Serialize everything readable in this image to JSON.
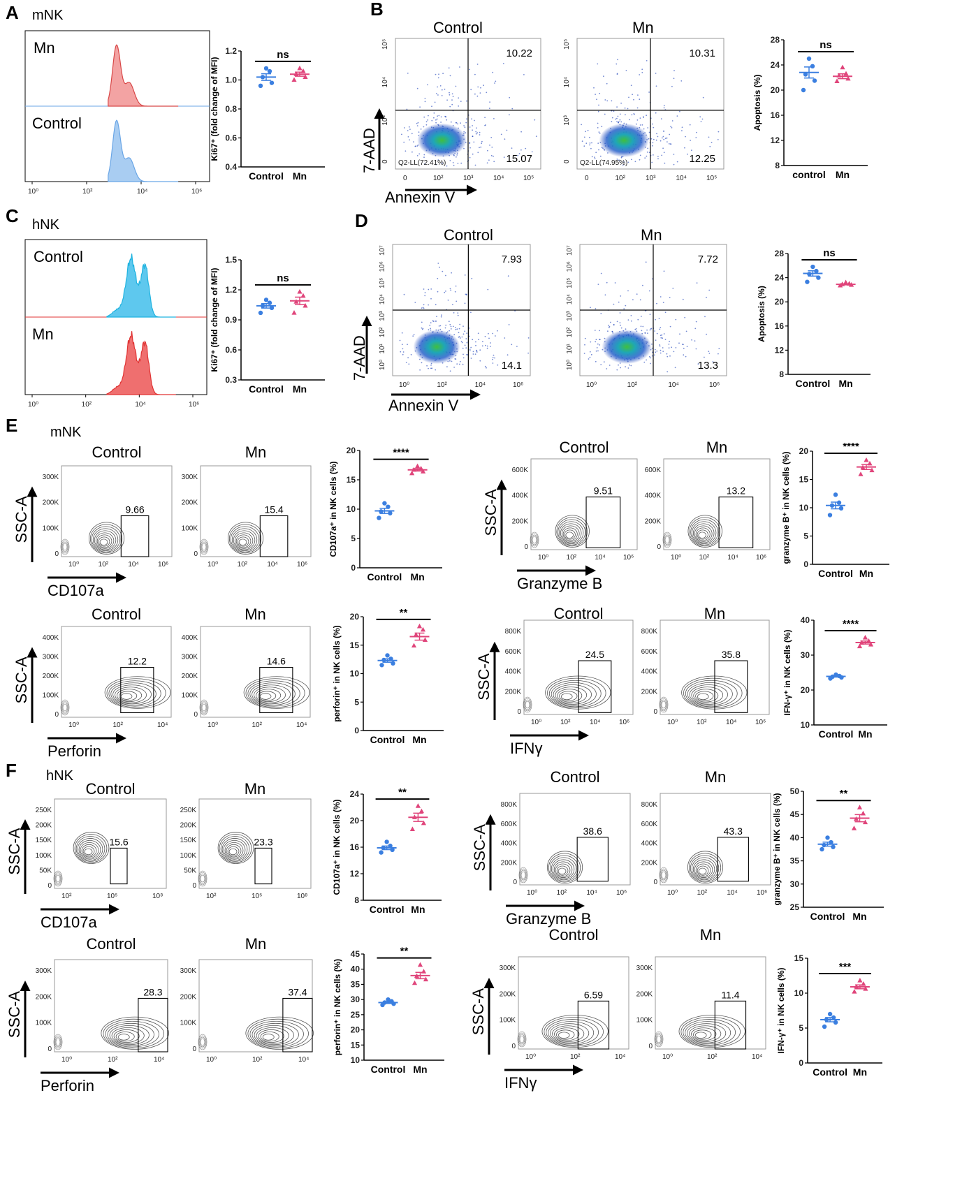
{
  "colors": {
    "control": "#3b7fe0",
    "mn": "#e0457b",
    "hist_control_fill": "#a9cdf2",
    "hist_mn_fill": "#f3a3a3",
    "hist_cyan": "#5ec8ee",
    "hist_red": "#ef6f6f"
  },
  "panels": {
    "A": {
      "letter": "A",
      "cell": "mNK",
      "hist_top": "Mn",
      "hist_bottom": "Control",
      "x_ticks": [
        "10⁰",
        "10²",
        "10⁴",
        "10⁶"
      ]
    },
    "B": {
      "letter": "B",
      "left_title": "Control",
      "right_title": "Mn",
      "left_quads": {
        "ur": "10.22",
        "lr": "15.07",
        "ll": "Q2-LL(72.41%)"
      },
      "right_quads": {
        "ur": "10.31",
        "lr": "12.25",
        "ll": "Q2-LL(74.95%)"
      },
      "xlabel": "Annexin V",
      "ylabel": "7-AAD",
      "x_ticks": [
        "0",
        "10²",
        "10³",
        "10⁴",
        "10⁵"
      ],
      "y_ticks": [
        "0",
        "10³",
        "10⁴",
        "10⁵"
      ]
    },
    "C": {
      "letter": "C",
      "cell": "hNK",
      "hist_top": "Control",
      "hist_bottom": "Mn",
      "x_ticks": [
        "10⁰",
        "10²",
        "10⁴",
        "10⁶"
      ]
    },
    "D": {
      "letter": "D",
      "left_title": "Control",
      "right_title": "Mn",
      "left_quads": {
        "ur": "7.93",
        "lr": "14.1"
      },
      "right_quads": {
        "ur": "7.72",
        "lr": "13.3"
      },
      "xlabel": "Annexin V",
      "ylabel": "7-AAD",
      "x_ticks": [
        "10⁰",
        "10²",
        "10⁴",
        "10⁶"
      ],
      "y_ticks": [
        "10⁰",
        "10¹",
        "10²",
        "10³",
        "10⁴",
        "10⁵",
        "10⁶",
        "10⁷"
      ]
    },
    "E": {
      "letter": "E",
      "cell": "mNK",
      "flows": [
        {
          "t1": "Control",
          "t2": "Mn",
          "g1": "9.66",
          "g2": "15.4",
          "xlabel": "CD107a",
          "ylabel": "SSC-A",
          "y_ticks": [
            "0",
            "100K",
            "200K",
            "300K"
          ],
          "x_ticks": [
            "10⁰",
            "10²",
            "10⁴",
            "10⁶"
          ]
        },
        {
          "t1": "Control",
          "t2": "Mn",
          "g1": "9.51",
          "g2": "13.2",
          "xlabel": "Granzyme B",
          "ylabel": "SSC-A",
          "y_ticks": [
            "0",
            "200K",
            "400K",
            "600K"
          ],
          "x_ticks": [
            "10⁰",
            "10²",
            "10⁴",
            "10⁶"
          ]
        },
        {
          "t1": "Control",
          "t2": "Mn",
          "g1": "12.2",
          "g2": "14.6",
          "xlabel": "Perforin",
          "ylabel": "SSC-A",
          "y_ticks": [
            "0",
            "100K",
            "200K",
            "300K",
            "400K"
          ],
          "x_ticks": [
            "10⁰",
            "10²",
            "10⁴"
          ]
        },
        {
          "t1": "Control",
          "t2": "Mn",
          "g1": "24.5",
          "g2": "35.8",
          "xlabel": "IFNγ",
          "ylabel": "SSC-A",
          "y_ticks": [
            "0",
            "200K",
            "400K",
            "600K",
            "800K"
          ],
          "x_ticks": [
            "10⁰",
            "10²",
            "10⁴",
            "10⁶"
          ]
        }
      ]
    },
    "F": {
      "letter": "F",
      "cell": "hNK",
      "flows": [
        {
          "t1": "Control",
          "t2": "Mn",
          "g1": "15.6",
          "g2": "23.3",
          "xlabel": "CD107a",
          "ylabel": "SSC-A",
          "y_ticks": [
            "0",
            "50K",
            "100K",
            "150K",
            "200K",
            "250K"
          ],
          "x_ticks": [
            "10²",
            "10⁵",
            "10⁸"
          ]
        },
        {
          "t1": "Control",
          "t2": "Mn",
          "g1": "38.6",
          "g2": "43.3",
          "xlabel": "Granzyme B",
          "ylabel": "SSC-A",
          "y_ticks": [
            "0",
            "200K",
            "400K",
            "600K",
            "800K"
          ],
          "x_ticks": [
            "10⁰",
            "10²",
            "10⁴",
            "10⁶"
          ]
        },
        {
          "t1": "Control",
          "t2": "Mn",
          "g1": "28.3",
          "g2": "37.4",
          "xlabel": "Perforin",
          "ylabel": "SSC-A",
          "y_ticks": [
            "0",
            "100K",
            "200K",
            "300K"
          ],
          "x_ticks": [
            "10⁰",
            "10²",
            "10⁴"
          ]
        },
        {
          "t1": "Control",
          "t2": "Mn",
          "g1": "6.59",
          "g2": "11.4",
          "xlabel": "IFNγ",
          "ylabel": "SSC-A",
          "y_ticks": [
            "0",
            "100K",
            "200K",
            "300K"
          ],
          "x_ticks": [
            "10⁰",
            "10²",
            "10⁴"
          ]
        }
      ]
    }
  },
  "chart_data": [
    {
      "type": "scatter",
      "id": "A",
      "title": "",
      "ylabel": "Ki67⁺ (fold change of MFI)",
      "categories": [
        "Control",
        "Mn"
      ],
      "ylim": [
        0.4,
        1.2
      ],
      "yticks": [
        0.4,
        0.6,
        0.8,
        1.0,
        1.2
      ],
      "ydecimals": 1,
      "significance": "ns",
      "series": [
        {
          "name": "Control",
          "values": [
            1.08,
            1.06,
            1.02,
            0.98,
            0.96
          ],
          "mean": 1.02
        },
        {
          "name": "Mn",
          "values": [
            1.08,
            1.06,
            1.04,
            1.02,
            1.0
          ],
          "mean": 1.04
        }
      ]
    },
    {
      "type": "scatter",
      "id": "B",
      "title": "",
      "ylabel": "Apoptosis (%)",
      "categories": [
        "control",
        "Mn"
      ],
      "ylim": [
        8,
        28
      ],
      "yticks": [
        8,
        12,
        16,
        20,
        24,
        28
      ],
      "ydecimals": 0,
      "significance": "ns",
      "series": [
        {
          "name": "control",
          "values": [
            25,
            23.8,
            22.5,
            21.5,
            20
          ],
          "mean": 22.8
        },
        {
          "name": "Mn",
          "values": [
            23.6,
            22.6,
            22.3,
            21.8,
            21.4
          ],
          "mean": 22.2
        }
      ]
    },
    {
      "type": "scatter",
      "id": "C",
      "title": "",
      "ylabel": "Ki67⁺ (fold change of MFI)",
      "categories": [
        "Control",
        "Mn"
      ],
      "ylim": [
        0.3,
        1.5
      ],
      "yticks": [
        0.3,
        0.6,
        0.9,
        1.2,
        1.5
      ],
      "ydecimals": 1,
      "significance": "ns",
      "series": [
        {
          "name": "Control",
          "values": [
            1.1,
            1.07,
            1.04,
            1.02,
            0.97
          ],
          "mean": 1.04
        },
        {
          "name": "Mn",
          "values": [
            1.18,
            1.14,
            1.08,
            1.04,
            0.97
          ],
          "mean": 1.09
        }
      ]
    },
    {
      "type": "scatter",
      "id": "D",
      "title": "",
      "ylabel": "Apoptosis (%)",
      "categories": [
        "Control",
        "Mn"
      ],
      "ylim": [
        8,
        28
      ],
      "yticks": [
        8,
        12,
        16,
        20,
        24,
        28
      ],
      "ydecimals": 0,
      "significance": "ns",
      "series": [
        {
          "name": "Control",
          "values": [
            25.8,
            25.1,
            24.6,
            24.0,
            23.3
          ],
          "mean": 24.7
        },
        {
          "name": "Mn",
          "values": [
            23.2,
            23.0,
            22.9,
            22.8,
            22.7
          ],
          "mean": 22.9
        }
      ]
    },
    {
      "type": "scatter",
      "id": "E1",
      "title": "",
      "ylabel": "CD107a⁺ in NK cells (%)",
      "categories": [
        "Control",
        "Mn"
      ],
      "ylim": [
        0,
        20
      ],
      "yticks": [
        0,
        5,
        10,
        15,
        20
      ],
      "ydecimals": 0,
      "significance": "****",
      "series": [
        {
          "name": "Control",
          "values": [
            11,
            10.4,
            9.6,
            9.3,
            8.5
          ],
          "mean": 9.7
        },
        {
          "name": "Mn",
          "values": [
            17.3,
            16.9,
            16.7,
            16.4,
            16.1
          ],
          "mean": 16.7
        }
      ]
    },
    {
      "type": "scatter",
      "id": "E2",
      "title": "",
      "ylabel": "granzyme B⁺ in NK cells (%)",
      "categories": [
        "Control",
        "Mn"
      ],
      "ylim": [
        0,
        20
      ],
      "yticks": [
        0,
        5,
        10,
        15,
        20
      ],
      "ydecimals": 0,
      "significance": "****",
      "series": [
        {
          "name": "Control",
          "values": [
            12.3,
            10.9,
            10.4,
            9.9,
            8.7
          ],
          "mean": 10.4
        },
        {
          "name": "Mn",
          "values": [
            18.4,
            17.8,
            17.1,
            16.6,
            15.9
          ],
          "mean": 17.2
        }
      ]
    },
    {
      "type": "scatter",
      "id": "E3",
      "title": "",
      "ylabel": "perforin⁺ in NK cells (%)",
      "categories": [
        "Control",
        "Mn"
      ],
      "ylim": [
        0,
        20
      ],
      "yticks": [
        0,
        5,
        10,
        15,
        20
      ],
      "ydecimals": 0,
      "significance": "**",
      "series": [
        {
          "name": "Control",
          "values": [
            13.2,
            12.6,
            12.4,
            11.8,
            11.5
          ],
          "mean": 12.3
        },
        {
          "name": "Mn",
          "values": [
            18.3,
            17.7,
            16.8,
            15.9,
            14.9
          ],
          "mean": 16.5
        }
      ]
    },
    {
      "type": "scatter",
      "id": "E4",
      "title": "",
      "ylabel": "IFN-γ⁺ in NK cells (%)",
      "categories": [
        "Control",
        "Mn"
      ],
      "ylim": [
        10,
        40
      ],
      "yticks": [
        10,
        20,
        30,
        40
      ],
      "ydecimals": 0,
      "significance": "****",
      "series": [
        {
          "name": "Control",
          "values": [
            24.4,
            24.0,
            23.8,
            23.6,
            23.3
          ],
          "mean": 23.9
        },
        {
          "name": "Mn",
          "values": [
            35.0,
            34.0,
            33.5,
            33.0,
            32.5
          ],
          "mean": 33.6
        }
      ]
    },
    {
      "type": "scatter",
      "id": "F1",
      "title": "",
      "ylabel": "CD107a⁺ in NK cells (%)",
      "categories": [
        "Control",
        "Mn"
      ],
      "ylim": [
        8,
        24
      ],
      "yticks": [
        8,
        12,
        16,
        20,
        24
      ],
      "ydecimals": 0,
      "significance": "**",
      "series": [
        {
          "name": "Control",
          "values": [
            16.8,
            16.2,
            15.9,
            15.6,
            15.2
          ],
          "mean": 15.9
        },
        {
          "name": "Mn",
          "values": [
            22.2,
            21.4,
            20.5,
            19.6,
            18.7
          ],
          "mean": 20.5
        }
      ]
    },
    {
      "type": "scatter",
      "id": "F2",
      "title": "",
      "ylabel": "granzyme B⁺ in NK cells (%)",
      "categories": [
        "Control",
        "Mn"
      ],
      "ylim": [
        25,
        50
      ],
      "yticks": [
        25,
        30,
        35,
        40,
        45,
        50
      ],
      "ydecimals": 0,
      "significance": "**",
      "series": [
        {
          "name": "Control",
          "values": [
            40.0,
            39.0,
            38.4,
            38.0,
            37.5
          ],
          "mean": 38.6
        },
        {
          "name": "Mn",
          "values": [
            46.5,
            45.2,
            44.0,
            43.3,
            42.0
          ],
          "mean": 44.2
        }
      ]
    },
    {
      "type": "scatter",
      "id": "F3",
      "title": "",
      "ylabel": "perforin⁺ in NK cells (%)",
      "categories": [
        "Control",
        "Mn"
      ],
      "ylim": [
        10,
        45
      ],
      "yticks": [
        10,
        15,
        20,
        25,
        30,
        35,
        40,
        45
      ],
      "ydecimals": 0,
      "significance": "**",
      "series": [
        {
          "name": "Control",
          "values": [
            30.0,
            29.4,
            29.0,
            28.6,
            28.2
          ],
          "mean": 29.0
        },
        {
          "name": "Mn",
          "values": [
            41.4,
            39.2,
            37.7,
            36.6,
            35.4
          ],
          "mean": 37.9
        }
      ]
    },
    {
      "type": "scatter",
      "id": "F4",
      "title": "",
      "ylabel": "IFN-γ⁺ in NK cells (%)",
      "categories": [
        "Control",
        "Mn"
      ],
      "ylim": [
        0,
        15
      ],
      "yticks": [
        0,
        5,
        10,
        15
      ],
      "ydecimals": 0,
      "significance": "***",
      "series": [
        {
          "name": "Control",
          "values": [
            7.0,
            6.5,
            6.2,
            5.8,
            5.2
          ],
          "mean": 6.2
        },
        {
          "name": "Mn",
          "values": [
            11.8,
            11.3,
            10.9,
            10.6,
            10.2
          ],
          "mean": 10.9
        }
      ]
    }
  ]
}
